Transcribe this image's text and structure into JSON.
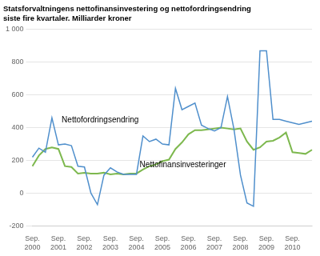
{
  "chart_data": {
    "type": "line",
    "title": "Statsforvaltningens nettofinansinvestering og nettofordringsendring\nsiste fire kvartaler. Milliarder kroner",
    "categories": [
      "Sep.\n2000",
      null,
      null,
      null,
      "Sep.\n2001",
      null,
      null,
      null,
      "Sep.\n2002",
      null,
      null,
      null,
      "Sep.\n2003",
      null,
      null,
      null,
      "Sep.\n2004",
      null,
      null,
      null,
      "Sep.\n2005",
      null,
      null,
      null,
      "Sep.\n2006",
      null,
      null,
      null,
      "Sep.\n2007",
      null,
      null,
      null,
      "Sep.\n2008",
      null,
      null,
      null,
      "Sep.\n2009",
      null,
      null,
      null,
      "Sep.\n2010",
      null,
      null,
      null
    ],
    "series": [
      {
        "name": "Nettofordringsendring",
        "color": "#4F8FCC",
        "values": [
          220,
          275,
          250,
          460,
          295,
          300,
          290,
          165,
          160,
          0,
          -70,
          110,
          155,
          130,
          115,
          115,
          115,
          350,
          315,
          330,
          300,
          295,
          640,
          510,
          530,
          550,
          415,
          395,
          380,
          400,
          590,
          390,
          110,
          -60,
          -80,
          870,
          870,
          450,
          450,
          440,
          430,
          420,
          430,
          440
        ]
      },
      {
        "name": "Nettofinansinvesteringer",
        "color": "#7DB84E",
        "values": [
          165,
          230,
          270,
          280,
          270,
          165,
          160,
          120,
          125,
          120,
          120,
          125,
          115,
          120,
          115,
          120,
          120,
          145,
          165,
          175,
          195,
          205,
          270,
          310,
          360,
          385,
          385,
          390,
          395,
          400,
          395,
          390,
          395,
          315,
          265,
          280,
          315,
          320,
          340,
          370,
          250,
          245,
          240,
          265
        ]
      }
    ],
    "ylim": [
      -200,
      1000
    ],
    "yticks": [
      -200,
      0,
      200,
      400,
      600,
      800,
      {
        "value": 1000,
        "label": "1 000"
      }
    ],
    "grid": true
  }
}
